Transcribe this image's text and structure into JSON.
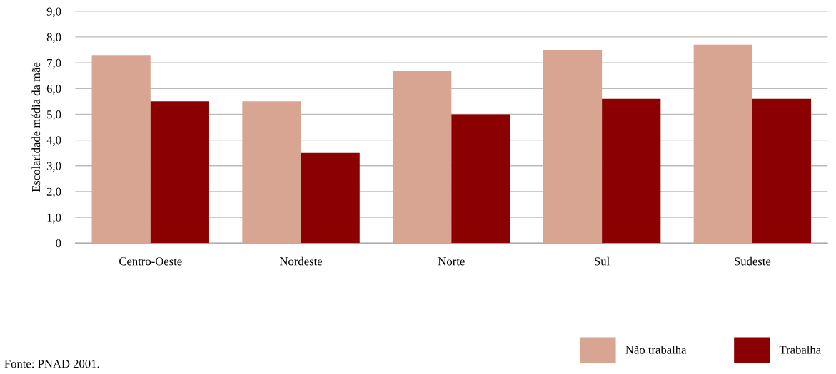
{
  "chart_data": {
    "type": "bar",
    "ylabel": "Escolaridade média da mãe",
    "categories": [
      "Centro-Oeste",
      "Nordeste",
      "Norte",
      "Sul",
      "Sudeste"
    ],
    "series": [
      {
        "name": "Não trabalha",
        "color": "#d8a593",
        "values": [
          7.3,
          5.5,
          6.7,
          7.5,
          7.7
        ]
      },
      {
        "name": "Trabalha",
        "color": "#8b0000",
        "values": [
          5.5,
          3.5,
          5.0,
          5.6,
          5.6
        ]
      }
    ],
    "ylim": [
      0,
      9
    ],
    "yticks": [
      0,
      {
        "value": 1,
        "label": "1,0"
      },
      {
        "value": 2,
        "label": "2,0"
      },
      {
        "value": 3,
        "label": "3,0"
      },
      {
        "value": 4,
        "label": "4,0"
      },
      {
        "value": 5,
        "label": "5,0"
      },
      {
        "value": 6,
        "label": "6,0"
      },
      {
        "value": 7,
        "label": "7,0"
      },
      {
        "value": 8,
        "label": "8,0"
      },
      {
        "value": 9,
        "label": "9,0"
      }
    ],
    "grid": "y",
    "legend": "bottom right",
    "annotations": [
      "Fonte: PNAD 2001."
    ]
  }
}
